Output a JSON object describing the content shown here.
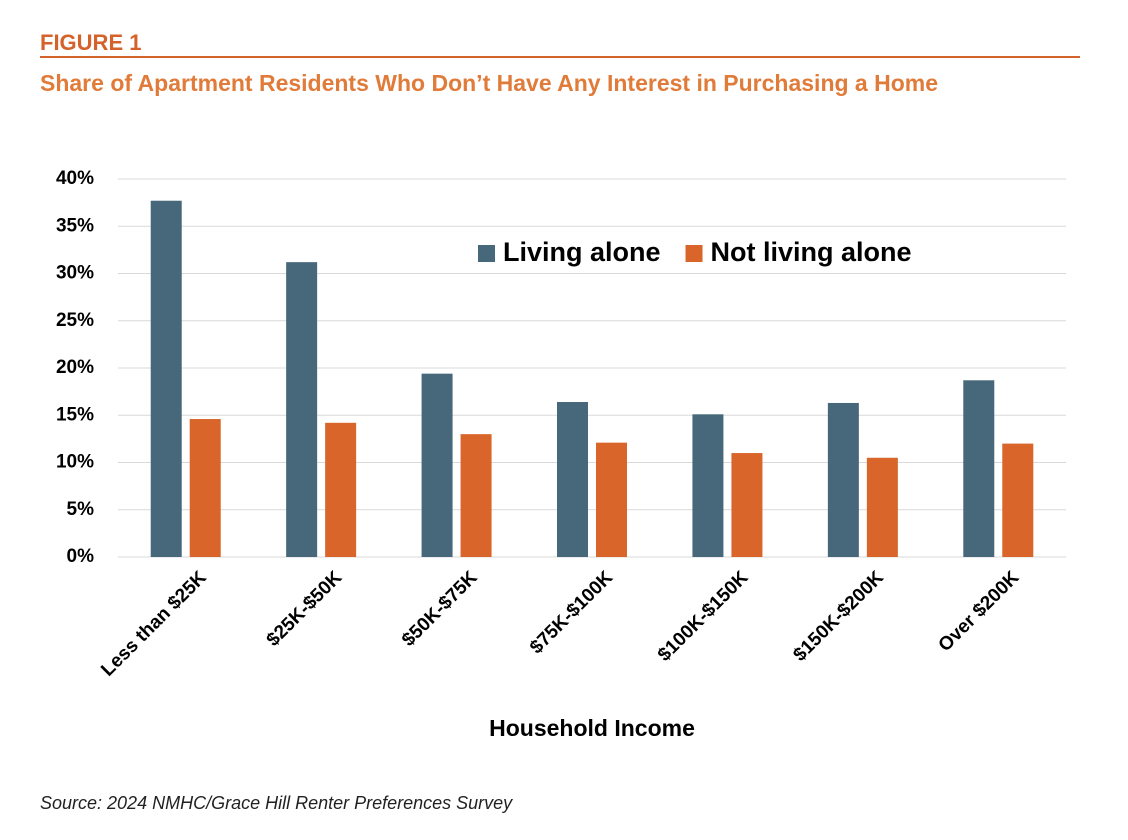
{
  "figure_label": "FIGURE 1",
  "source": "Source: 2024 NMHC/Grace Hill Renter Preferences Survey",
  "chart_data": {
    "type": "bar",
    "title": "Share of Apartment Residents Who Don’t Have Any Interest in Purchasing a Home",
    "x_label": "Household Income",
    "categories": [
      "Less than $25K",
      "$25K-$50K",
      "$50K-$75K",
      "$75K-$100K",
      "$100K-$150K",
      "$150K-$200K",
      "Over $200K"
    ],
    "series": [
      {
        "name": "Living alone",
        "color": "#47687a",
        "values": [
          37.7,
          31.2,
          19.4,
          16.4,
          15.1,
          16.3,
          18.7
        ]
      },
      {
        "name": "Not living alone",
        "color": "#d9652b",
        "values": [
          14.6,
          14.2,
          13.0,
          12.1,
          11.0,
          10.5,
          12.0
        ]
      }
    ],
    "ylim": [
      0,
      40
    ],
    "yticks": [
      {
        "value": 0,
        "label": "0%"
      },
      {
        "value": 5,
        "label": "5%"
      },
      {
        "value": 10,
        "label": "10%"
      },
      {
        "value": 15,
        "label": "15%"
      },
      {
        "value": 20,
        "label": "20%"
      },
      {
        "value": 25,
        "label": "25%"
      },
      {
        "value": 30,
        "label": "30%"
      },
      {
        "value": 35,
        "label": "35%"
      },
      {
        "value": 40,
        "label": "40%"
      }
    ],
    "grid": true
  }
}
